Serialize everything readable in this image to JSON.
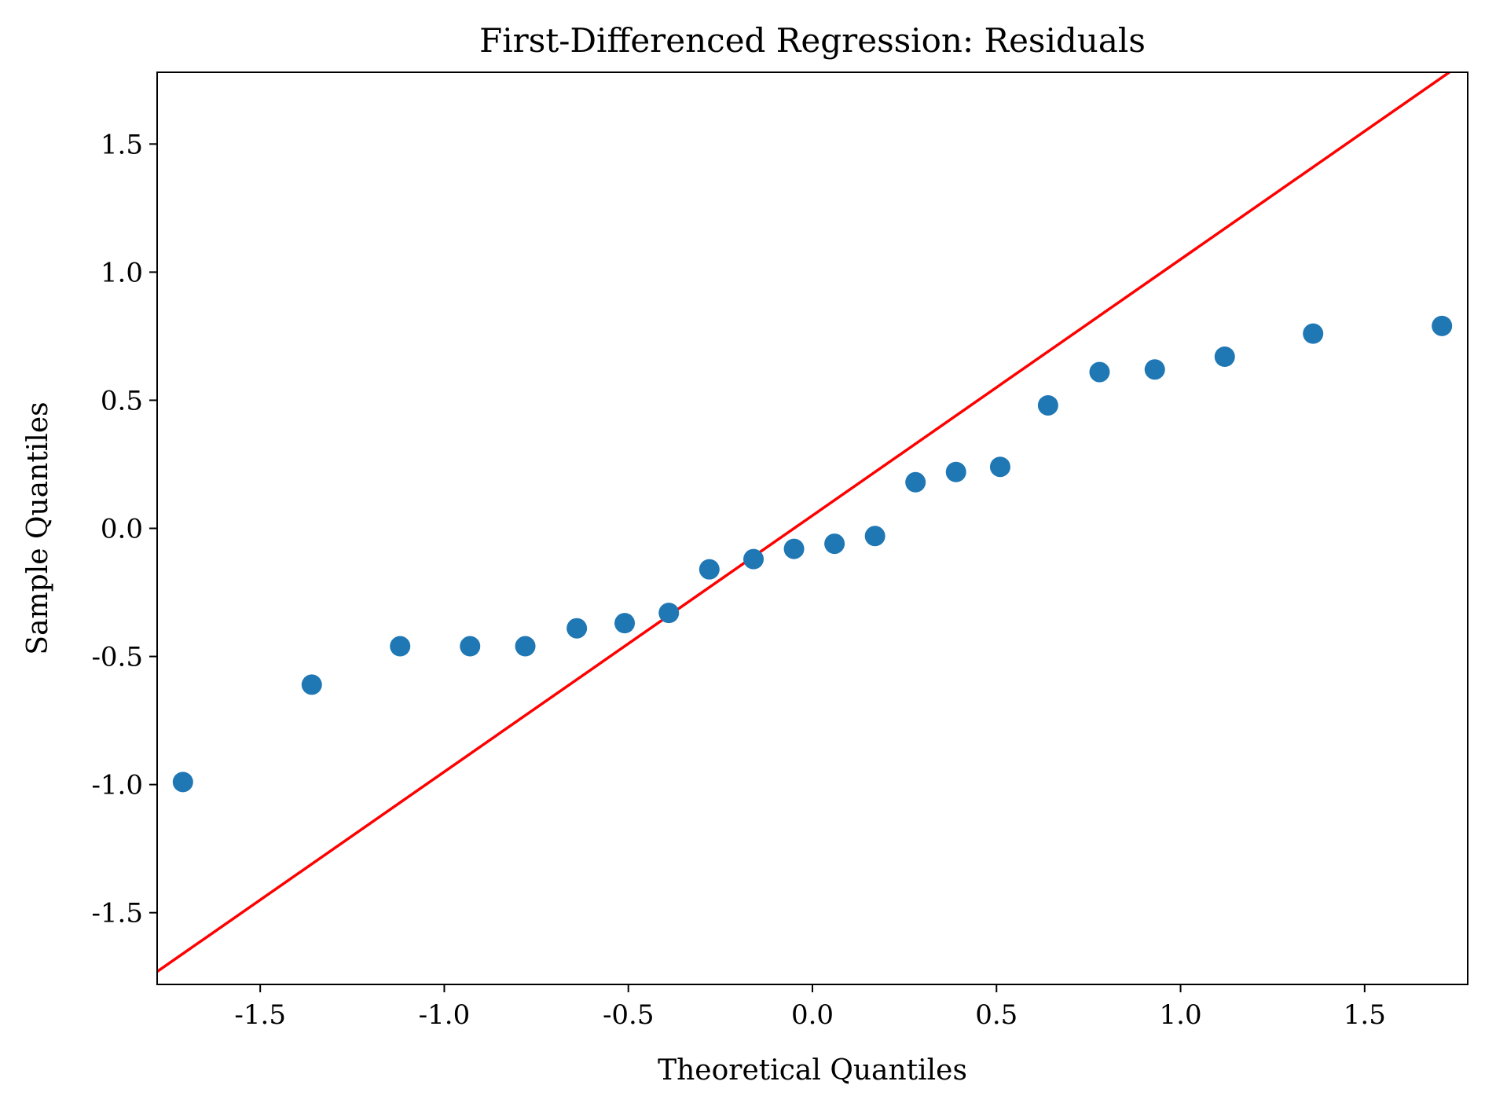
{
  "chart_data": {
    "type": "scatter",
    "title": "First-Differenced Regression: Residuals",
    "xlabel": "Theoretical Quantiles",
    "ylabel": "Sample Quantiles",
    "xlim": [
      -1.78,
      1.78
    ],
    "ylim": [
      -1.78,
      1.78
    ],
    "xticks": [
      -1.5,
      -1.0,
      -0.5,
      0.0,
      0.5,
      1.0,
      1.5
    ],
    "yticks": [
      -1.5,
      -1.0,
      -0.5,
      0.0,
      0.5,
      1.0,
      1.5
    ],
    "xtick_labels": [
      "-1.5",
      "-1.0",
      "-0.5",
      "0.0",
      "0.5",
      "1.0",
      "1.5"
    ],
    "ytick_labels": [
      "-1.5",
      "-1.0",
      "-0.5",
      "0.0",
      "0.5",
      "1.0",
      "1.5"
    ],
    "grid": false,
    "series": [
      {
        "color": "#1f77b4",
        "x": [
          -1.71,
          -1.36,
          -1.12,
          -0.93,
          -0.78,
          -0.64,
          -0.51,
          -0.39,
          -0.28,
          -0.16,
          -0.05,
          0.06,
          0.17,
          0.28,
          0.39,
          0.51,
          0.64,
          0.78,
          0.93,
          1.12,
          1.36,
          1.71
        ],
        "y": [
          -0.99,
          -0.61,
          -0.46,
          -0.46,
          -0.46,
          -0.39,
          -0.37,
          -0.33,
          -0.16,
          -0.12,
          -0.08,
          -0.06,
          -0.03,
          0.18,
          0.22,
          0.24,
          0.48,
          0.61,
          0.62,
          0.67,
          0.76,
          0.79
        ]
      }
    ],
    "reference_line": {
      "color": "#ff0000",
      "slope": 1.0,
      "intercept": 0.05
    }
  }
}
